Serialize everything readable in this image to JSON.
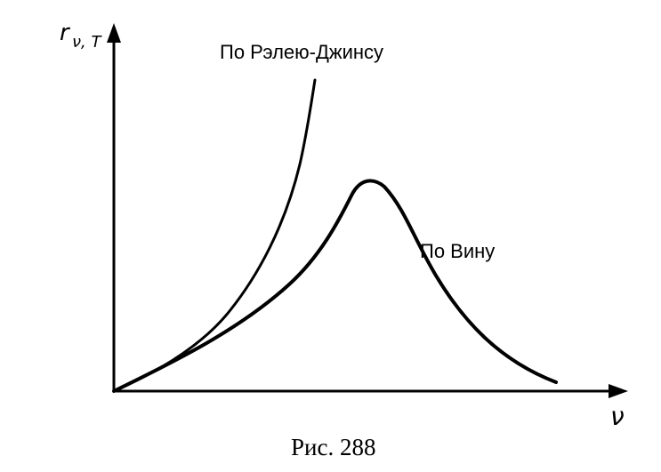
{
  "figure": {
    "y_axis_label": "r",
    "y_axis_subscript": "ν, T",
    "x_axis_label": "ν",
    "rayleigh_jeans_label": "По Рэлею-Джинсу",
    "wien_label": "По Вину",
    "caption": "Рис. 288"
  }
}
